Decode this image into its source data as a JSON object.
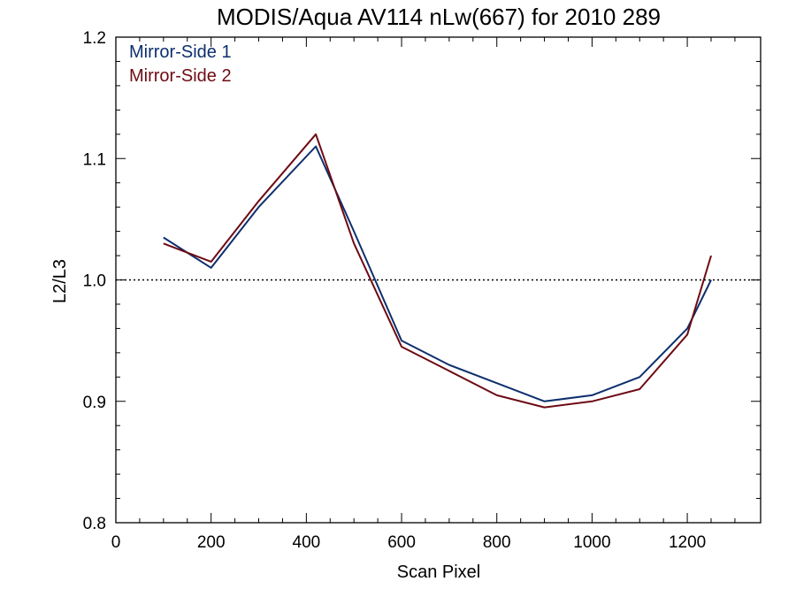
{
  "chart_data": {
    "type": "line",
    "title": "MODIS/Aqua AV114 nLw(667) for 2010 289",
    "xlabel": "Scan Pixel",
    "ylabel": "L2/L3",
    "xlim": [
      0,
      1354
    ],
    "ylim": [
      0.8,
      1.2
    ],
    "xticks": [
      0,
      200,
      400,
      600,
      800,
      1000,
      1200
    ],
    "yticks": [
      0.8,
      0.9,
      1.0,
      1.1,
      1.2
    ],
    "ytick_labels": [
      "0.8",
      "0.9",
      "1.0",
      "1.1",
      "1.2"
    ],
    "reference_line": {
      "y": 1.0,
      "style": "dotted"
    },
    "grid": false,
    "legend_position": "top-left",
    "colors": {
      "mirror_side_1": "#0d2f6e",
      "mirror_side_2": "#6e0b14"
    },
    "series": [
      {
        "name": "Mirror-Side 1",
        "color": "#0d2f6e",
        "x": [
          100,
          200,
          300,
          420,
          500,
          600,
          700,
          800,
          900,
          1000,
          1100,
          1200,
          1250
        ],
        "values": [
          1.035,
          1.01,
          1.06,
          1.11,
          1.04,
          0.95,
          0.93,
          0.915,
          0.9,
          0.905,
          0.92,
          0.96,
          1.0
        ]
      },
      {
        "name": "Mirror-Side 2",
        "color": "#6e0b14",
        "x": [
          100,
          200,
          300,
          420,
          500,
          600,
          700,
          800,
          900,
          1000,
          1100,
          1200,
          1250
        ],
        "values": [
          1.03,
          1.015,
          1.065,
          1.12,
          1.03,
          0.945,
          0.925,
          0.905,
          0.895,
          0.9,
          0.91,
          0.955,
          1.02
        ]
      }
    ]
  }
}
